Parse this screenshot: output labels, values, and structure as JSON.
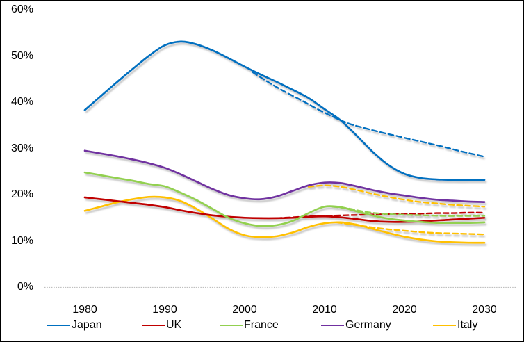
{
  "chart_data": {
    "type": "line",
    "title": "",
    "xlabel": "",
    "ylabel": "",
    "grid": false,
    "background": "#FFFFFF",
    "axis_line_color": "#BFBFBF",
    "x_axis": {
      "range": [
        1975,
        2033
      ],
      "ticks": [
        1980,
        1990,
        2000,
        2010,
        2020,
        2030
      ],
      "tick_labels": [
        "1980",
        "1990",
        "2000",
        "2010",
        "2020",
        "2030"
      ]
    },
    "y_axis": {
      "range": [
        0,
        60
      ],
      "ticks": [
        0,
        10,
        20,
        30,
        40,
        50,
        60
      ],
      "tick_labels": [
        "0%",
        "10%",
        "20%",
        "30%",
        "40%",
        "50%",
        "60%"
      ]
    },
    "legend": {
      "position": "bottom",
      "items": [
        {
          "id": "japan",
          "label": "Japan",
          "color": "#0070C0"
        },
        {
          "id": "uk",
          "label": "UK",
          "color": "#C00000"
        },
        {
          "id": "france",
          "label": "France",
          "color": "#92D050"
        },
        {
          "id": "germany",
          "label": "Germany",
          "color": "#7030A0"
        },
        {
          "id": "italy",
          "label": "Italy",
          "color": "#FFC000"
        }
      ]
    },
    "series": [
      {
        "id": "uk-projection",
        "name": "UK (dashed projection)",
        "color": "#C00000",
        "style": "dashed",
        "points": [
          [
            2004,
            14.9
          ],
          [
            2006,
            15.1
          ],
          [
            2008,
            15.3
          ],
          [
            2010,
            15.4
          ],
          [
            2012,
            15.5
          ],
          [
            2014,
            15.6
          ],
          [
            2016,
            15.7
          ],
          [
            2018,
            15.8
          ],
          [
            2020,
            15.9
          ],
          [
            2022,
            15.9
          ],
          [
            2024,
            16.0
          ],
          [
            2026,
            16.0
          ],
          [
            2028,
            16.1
          ],
          [
            2030,
            16.1
          ]
        ]
      },
      {
        "id": "france-projection",
        "name": "France (dashed projection)",
        "color": "#92D050",
        "style": "dashed",
        "points": [
          [
            2011,
            17.4
          ],
          [
            2013,
            17.0
          ],
          [
            2015,
            16.3
          ],
          [
            2017,
            15.9
          ],
          [
            2019,
            15.7
          ],
          [
            2021,
            15.6
          ],
          [
            2023,
            15.5
          ],
          [
            2025,
            15.4
          ],
          [
            2027,
            15.4
          ],
          [
            2030,
            15.4
          ]
        ]
      },
      {
        "id": "italy-projection-lower",
        "name": "Italy (dashed projection, lower)",
        "color": "#FFC000",
        "style": "dashed",
        "points": [
          [
            2011.5,
            14.0
          ],
          [
            2014,
            13.4
          ],
          [
            2016,
            12.9
          ],
          [
            2018,
            12.5
          ],
          [
            2020,
            12.2
          ],
          [
            2022,
            11.9
          ],
          [
            2024,
            11.7
          ],
          [
            2026,
            11.6
          ],
          [
            2028,
            11.5
          ],
          [
            2030,
            11.4
          ]
        ]
      },
      {
        "id": "italy-projection-upper",
        "name": "Italy (dashed projection, upper)",
        "color": "#FFC000",
        "style": "dashed",
        "points": [
          [
            2008,
            21.7
          ],
          [
            2010,
            22.0
          ],
          [
            2012,
            21.7
          ],
          [
            2014,
            21.0
          ],
          [
            2016,
            20.2
          ],
          [
            2018,
            19.5
          ],
          [
            2020,
            18.9
          ],
          [
            2022,
            18.4
          ],
          [
            2024,
            18.1
          ],
          [
            2026,
            17.8
          ],
          [
            2028,
            17.6
          ],
          [
            2030,
            17.4
          ]
        ]
      },
      {
        "id": "japan-projection",
        "name": "Japan (dashed projection)",
        "color": "#0070C0",
        "style": "dashed",
        "points": [
          [
            2001,
            46.5
          ],
          [
            2003,
            44.3
          ],
          [
            2005,
            42.3
          ],
          [
            2007,
            40.5
          ],
          [
            2009,
            38.6
          ],
          [
            2011,
            36.9
          ],
          [
            2013,
            35.4
          ],
          [
            2015,
            34.4
          ],
          [
            2017,
            33.5
          ],
          [
            2019,
            32.7
          ],
          [
            2021,
            31.9
          ],
          [
            2023,
            31.1
          ],
          [
            2025,
            30.3
          ],
          [
            2027,
            29.4
          ],
          [
            2030,
            28.2
          ]
        ]
      },
      {
        "id": "italy",
        "name": "Italy",
        "color": "#FFC000",
        "style": "solid",
        "points": [
          [
            1980,
            16.5
          ],
          [
            1982,
            17.4
          ],
          [
            1984,
            18.3
          ],
          [
            1986,
            19.0
          ],
          [
            1988,
            19.5
          ],
          [
            1990,
            19.4
          ],
          [
            1992,
            18.6
          ],
          [
            1994,
            16.9
          ],
          [
            1996,
            14.8
          ],
          [
            1998,
            12.6
          ],
          [
            2000,
            11.2
          ],
          [
            2002,
            10.8
          ],
          [
            2004,
            11.0
          ],
          [
            2006,
            11.8
          ],
          [
            2008,
            13.0
          ],
          [
            2010,
            13.8
          ],
          [
            2012,
            14.0
          ],
          [
            2014,
            13.5
          ],
          [
            2016,
            12.6
          ],
          [
            2018,
            11.7
          ],
          [
            2020,
            10.9
          ],
          [
            2022,
            10.3
          ],
          [
            2024,
            9.9
          ],
          [
            2026,
            9.7
          ],
          [
            2028,
            9.6
          ],
          [
            2030,
            9.6
          ]
        ]
      },
      {
        "id": "uk",
        "name": "UK",
        "color": "#C00000",
        "style": "solid",
        "points": [
          [
            1980,
            19.4
          ],
          [
            1982,
            19.0
          ],
          [
            1984,
            18.6
          ],
          [
            1986,
            18.2
          ],
          [
            1988,
            17.8
          ],
          [
            1990,
            17.3
          ],
          [
            1992,
            16.6
          ],
          [
            1994,
            16.0
          ],
          [
            1996,
            15.5
          ],
          [
            1998,
            15.2
          ],
          [
            2000,
            15.0
          ],
          [
            2002,
            14.9
          ],
          [
            2004,
            14.9
          ],
          [
            2006,
            15.0
          ],
          [
            2008,
            15.2
          ],
          [
            2010,
            15.3
          ],
          [
            2012,
            15.1
          ],
          [
            2014,
            14.7
          ],
          [
            2016,
            14.3
          ],
          [
            2018,
            14.1
          ],
          [
            2020,
            14.1
          ],
          [
            2022,
            14.2
          ],
          [
            2024,
            14.4
          ],
          [
            2026,
            14.6
          ],
          [
            2028,
            14.8
          ],
          [
            2030,
            15.0
          ]
        ]
      },
      {
        "id": "france",
        "name": "France",
        "color": "#92D050",
        "style": "solid",
        "points": [
          [
            1980,
            24.8
          ],
          [
            1982,
            24.2
          ],
          [
            1984,
            23.6
          ],
          [
            1986,
            23.0
          ],
          [
            1988,
            22.3
          ],
          [
            1990,
            21.8
          ],
          [
            1992,
            20.4
          ],
          [
            1994,
            18.8
          ],
          [
            1996,
            16.9
          ],
          [
            1998,
            15.0
          ],
          [
            2000,
            13.8
          ],
          [
            2002,
            13.2
          ],
          [
            2004,
            13.4
          ],
          [
            2006,
            14.3
          ],
          [
            2008,
            16.0
          ],
          [
            2010,
            17.4
          ],
          [
            2012,
            17.3
          ],
          [
            2014,
            16.4
          ],
          [
            2016,
            15.5
          ],
          [
            2018,
            14.8
          ],
          [
            2020,
            14.4
          ],
          [
            2022,
            14.1
          ],
          [
            2024,
            13.9
          ],
          [
            2026,
            13.9
          ],
          [
            2028,
            13.9
          ],
          [
            2030,
            14.0
          ]
        ]
      },
      {
        "id": "germany",
        "name": "Germany",
        "color": "#7030A0",
        "style": "solid",
        "points": [
          [
            1980,
            29.5
          ],
          [
            1982,
            28.9
          ],
          [
            1984,
            28.3
          ],
          [
            1986,
            27.6
          ],
          [
            1988,
            26.8
          ],
          [
            1990,
            25.8
          ],
          [
            1992,
            24.4
          ],
          [
            1994,
            22.8
          ],
          [
            1996,
            21.2
          ],
          [
            1998,
            19.9
          ],
          [
            2000,
            19.2
          ],
          [
            2002,
            19.0
          ],
          [
            2004,
            19.6
          ],
          [
            2006,
            20.8
          ],
          [
            2008,
            22.0
          ],
          [
            2010,
            22.6
          ],
          [
            2012,
            22.5
          ],
          [
            2014,
            21.8
          ],
          [
            2016,
            21.0
          ],
          [
            2018,
            20.3
          ],
          [
            2020,
            19.8
          ],
          [
            2022,
            19.3
          ],
          [
            2024,
            18.9
          ],
          [
            2026,
            18.7
          ],
          [
            2028,
            18.5
          ],
          [
            2030,
            18.4
          ]
        ]
      },
      {
        "id": "japan",
        "name": "Japan",
        "color": "#0070C0",
        "style": "solid",
        "points": [
          [
            1980,
            38.3
          ],
          [
            1982,
            41.3
          ],
          [
            1984,
            44.3
          ],
          [
            1986,
            47.2
          ],
          [
            1988,
            50.0
          ],
          [
            1990,
            52.3
          ],
          [
            1992,
            53.1
          ],
          [
            1994,
            52.5
          ],
          [
            1996,
            51.2
          ],
          [
            1998,
            49.5
          ],
          [
            2000,
            47.7
          ],
          [
            2002,
            46.0
          ],
          [
            2004,
            44.4
          ],
          [
            2006,
            42.7
          ],
          [
            2008,
            40.9
          ],
          [
            2010,
            38.5
          ],
          [
            2012,
            36.1
          ],
          [
            2014,
            32.8
          ],
          [
            2016,
            29.3
          ],
          [
            2018,
            26.4
          ],
          [
            2020,
            24.5
          ],
          [
            2022,
            23.6
          ],
          [
            2024,
            23.3
          ],
          [
            2026,
            23.2
          ],
          [
            2028,
            23.2
          ],
          [
            2030,
            23.2
          ]
        ]
      }
    ]
  }
}
